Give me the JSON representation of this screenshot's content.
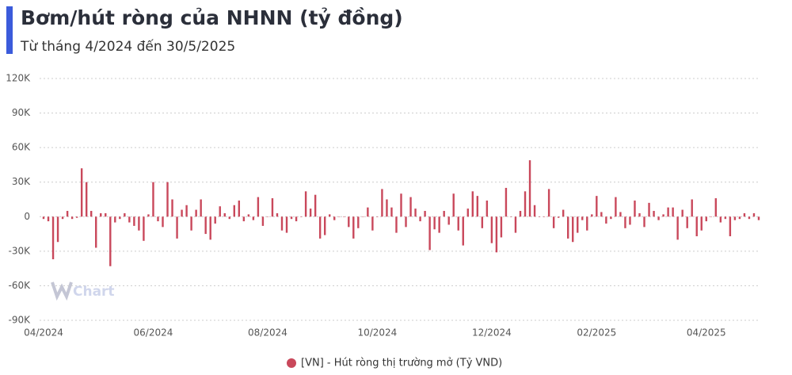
{
  "chart_data": {
    "type": "bar",
    "title": "Bơm/hút ròng của NHNN (tỷ đồng)",
    "subtitle": "Từ tháng 4/2024 đến 30/5/2025",
    "watermark": "Chart",
    "categories": [
      "04/2024",
      null,
      null,
      null,
      null,
      null,
      null,
      null,
      null,
      null,
      null,
      null,
      null,
      null,
      null,
      null,
      null,
      null,
      null,
      null,
      null,
      null,
      null,
      "06/2024",
      null,
      null,
      null,
      null,
      null,
      null,
      null,
      null,
      null,
      null,
      null,
      null,
      null,
      null,
      null,
      null,
      null,
      null,
      null,
      null,
      null,
      null,
      null,
      "08/2024",
      null,
      null,
      null,
      null,
      null,
      null,
      null,
      null,
      null,
      null,
      null,
      null,
      null,
      null,
      null,
      null,
      null,
      null,
      null,
      null,
      null,
      null,
      "10/2024",
      null,
      null,
      null,
      null,
      null,
      null,
      null,
      null,
      null,
      null,
      null,
      null,
      null,
      null,
      null,
      null,
      null,
      null,
      null,
      null,
      null,
      null,
      null,
      "12/2024",
      null,
      null,
      null,
      null,
      null,
      null,
      null,
      null,
      null,
      null,
      null,
      null,
      null,
      null,
      null,
      null,
      null,
      null,
      null,
      null,
      null,
      "02/2025",
      null,
      null,
      null,
      null,
      null,
      null,
      null,
      null,
      null,
      null,
      null,
      null,
      null,
      null,
      null,
      null,
      null,
      null,
      null,
      null,
      null,
      null,
      "04/2025",
      null,
      null,
      null,
      null,
      null,
      null,
      null,
      null,
      null,
      null,
      null
    ],
    "series": [
      {
        "name": "[VN] - Hút ròng thị trường mở (Tỷ VND)",
        "color": "#c9485b",
        "values": [
          -2000,
          -4000,
          -37000,
          -22000,
          -2000,
          5000,
          -2000,
          -1000,
          42000,
          30000,
          5000,
          -27000,
          3000,
          3000,
          -43000,
          -5000,
          -2000,
          3000,
          -5000,
          -8000,
          -12000,
          -21000,
          2000,
          30000,
          -4000,
          -9000,
          30000,
          15000,
          -19000,
          6000,
          10000,
          -12000,
          6000,
          15000,
          -15000,
          -20000,
          -6000,
          9000,
          3000,
          -2000,
          10000,
          14000,
          -4000,
          2000,
          -3000,
          17000,
          -8000,
          0,
          16000,
          3000,
          -12000,
          -14000,
          -2000,
          -4000,
          0,
          22000,
          7000,
          19000,
          -19000,
          -16000,
          2000,
          -3000,
          0,
          0,
          -9000,
          -19000,
          -10000,
          0,
          8000,
          -12000,
          0,
          24000,
          15000,
          8000,
          -14000,
          20000,
          -9000,
          17000,
          7000,
          -4000,
          5000,
          -29000,
          -11000,
          -14000,
          5000,
          -7000,
          20000,
          -12000,
          -25000,
          7000,
          22000,
          18000,
          -10000,
          14000,
          -23000,
          -31000,
          -18000,
          25000,
          0,
          -14000,
          5000,
          22000,
          49000,
          10000,
          0,
          0,
          24000,
          -10000,
          -1000,
          6000,
          -19000,
          -22000,
          -14000,
          -3000,
          -12000,
          2000,
          18000,
          4000,
          -6000,
          -2000,
          17000,
          4000,
          -10000,
          -7000,
          14000,
          3000,
          -9000,
          12000,
          5000,
          -3000,
          2000,
          8000,
          8000,
          -20000,
          6000,
          -10000,
          15000,
          -17000,
          -12000,
          -4000,
          0,
          16000,
          -5000,
          -2000,
          -17000,
          -3000,
          -2000,
          3000,
          -2000,
          3000,
          -3000
        ]
      }
    ],
    "ylim": [
      -90000,
      120000
    ],
    "yticks": [
      {
        "value": -90000,
        "label": "-90K"
      },
      {
        "value": -60000,
        "label": "-60K"
      },
      {
        "value": -30000,
        "label": "-30K"
      },
      0,
      {
        "value": 30000,
        "label": "30K"
      },
      {
        "value": 60000,
        "label": "60K"
      },
      {
        "value": 90000,
        "label": "90K"
      },
      {
        "value": 120000,
        "label": "120K"
      }
    ],
    "grid": true
  }
}
